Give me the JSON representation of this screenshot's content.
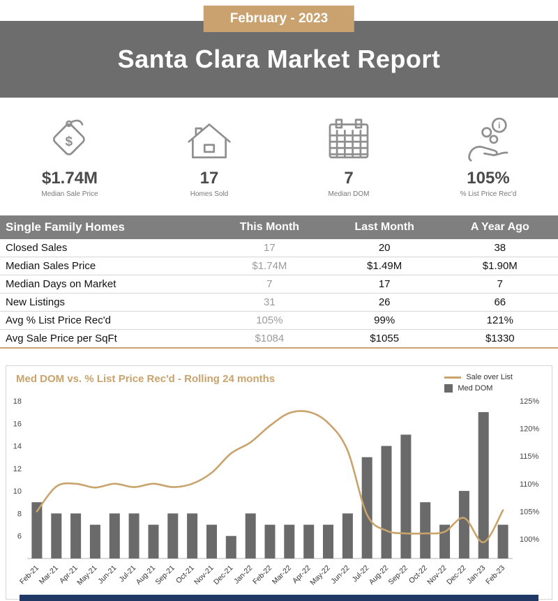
{
  "header": {
    "badge": "February - 2023",
    "title": "Santa Clara Market Report"
  },
  "stats": [
    {
      "icon": "price-tag-icon",
      "value": "$1.74M",
      "label": "Median Sale Price"
    },
    {
      "icon": "house-icon",
      "value": "17",
      "label": "Homes Sold"
    },
    {
      "icon": "calendar-icon",
      "value": "7",
      "label": "Median DOM"
    },
    {
      "icon": "coins-in-hand-icon",
      "value": "105%",
      "label": "% List Price Rec'd"
    }
  ],
  "table": {
    "header": [
      "Single Family Homes",
      "This Month",
      "Last Month",
      "A Year Ago"
    ],
    "rows": [
      [
        "Closed Sales",
        "17",
        "20",
        "38"
      ],
      [
        "Median Sales Price",
        "$1.74M",
        "$1.49M",
        "$1.90M"
      ],
      [
        "Median Days on Market",
        "7",
        "17",
        "7"
      ],
      [
        "New Listings",
        "31",
        "26",
        "66"
      ],
      [
        "Avg % List Price Rec'd",
        "105%",
        "99%",
        "121%"
      ],
      [
        "Avg Sale Price per SqFt",
        "$1084",
        "$1055",
        "$1330"
      ]
    ]
  },
  "chart_data": {
    "type": "bar+line",
    "title": "Med DOM  vs. % List Price Rec'd - Rolling 24 months",
    "categories": [
      "Feb-21",
      "Mar-21",
      "Apr-21",
      "May-21",
      "Jun-21",
      "Jul-21",
      "Aug-21",
      "Sep-21",
      "Oct-21",
      "Nov-21",
      "Dec-21",
      "Jan-22",
      "Feb-22",
      "Mar-22",
      "Apr-22",
      "May-22",
      "Jun-22",
      "Jul-22",
      "Aug-22",
      "Sep-22",
      "Oct-22",
      "Nov-22",
      "Dec-22",
      "Jan-23",
      "Feb-23"
    ],
    "series": [
      {
        "name": "Sale over List",
        "type": "line",
        "axis": "right",
        "color": "#c9a36c",
        "values": [
          105,
          109.5,
          110,
          109.3,
          110,
          109.4,
          110,
          109.4,
          110,
          112,
          115.5,
          117.5,
          120.5,
          122.8,
          123,
          121,
          116,
          104.4,
          101.5,
          101,
          101,
          101.3,
          103.8,
          99.4,
          105.2
        ]
      },
      {
        "name": "Med DOM",
        "type": "bar",
        "axis": "left",
        "color": "#6a6a6a",
        "values": [
          9,
          8,
          8,
          7,
          8,
          8,
          7,
          8,
          8,
          7,
          6,
          8,
          7,
          7,
          7,
          7,
          8,
          13,
          14,
          15,
          9,
          7,
          10,
          17,
          7
        ]
      }
    ],
    "left_axis": {
      "label": "Med DOM",
      "min": 4,
      "max": 18,
      "ticks": [
        18,
        16,
        14,
        12,
        10,
        8,
        6
      ]
    },
    "right_axis": {
      "label": "% List Price Rec'd",
      "min": 100,
      "max": 125,
      "ticks": [
        "125%",
        "120%",
        "115%",
        "110%",
        "105%",
        "100%"
      ]
    },
    "legend_position": "top-right",
    "grid": false
  },
  "colors": {
    "accent_tan": "#c9a26f",
    "header_gray": "#6d6d6d",
    "table_header_gray": "#7f7f7f",
    "bar_gray": "#6a6a6a",
    "footer_navy": "#1f3864"
  }
}
